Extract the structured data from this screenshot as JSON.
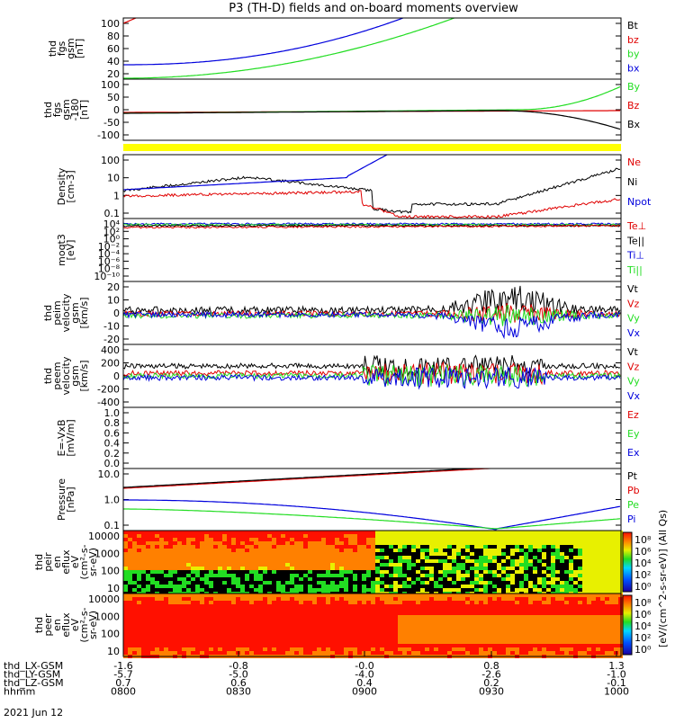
{
  "title": "P3 (TH-D) fields and on-board moments overview",
  "colors": {
    "black": "#000000",
    "red": "#e00000",
    "green": "#22dd22",
    "blue": "#0000dd",
    "yellow": "#ffff00"
  },
  "chart_data": [
    {
      "type": "line",
      "ylabel": [
        "thd",
        "fgs",
        "gsm",
        "[nT]"
      ],
      "yticks": [
        "100",
        "80",
        "60",
        "40",
        "20"
      ],
      "ylim": [
        20,
        100
      ],
      "legend": [
        {
          "name": "Bt",
          "color": "#000000"
        },
        {
          "name": "bz",
          "color": "#e00000"
        },
        {
          "name": "by",
          "color": "#22dd22"
        },
        {
          "name": "bx",
          "color": "#0000dd"
        }
      ]
    },
    {
      "type": "line",
      "ylabel": [
        "thd",
        "fgs",
        "gsm",
        "-180",
        "[nT]"
      ],
      "yticks": [
        "100",
        "50",
        "0",
        "-50",
        "-100"
      ],
      "ylim": [
        -130,
        100
      ],
      "legend": [
        {
          "name": "By",
          "color": "#22dd22"
        },
        {
          "name": "Bz",
          "color": "#e00000"
        },
        {
          "name": "Bx",
          "color": "#000000"
        }
      ]
    },
    {
      "type": "line",
      "ylabel": [
        "Density",
        "[cm-3]"
      ],
      "yticks": [
        "100",
        "10",
        "1",
        "0.1"
      ],
      "yscale": "log",
      "legend": [
        {
          "name": "Ne",
          "color": "#e00000"
        },
        {
          "name": "Ni",
          "color": "#000000"
        },
        {
          "name": "Npot",
          "color": "#0000dd"
        }
      ]
    },
    {
      "type": "line",
      "ylabel": [
        "moqt3",
        "[eV]"
      ],
      "yticks": [
        "10⁴",
        "10²",
        "10⁰",
        "10⁻²",
        "10⁻⁴",
        "10⁻⁶",
        "10⁻⁸",
        "10⁻¹⁰"
      ],
      "yscale": "log",
      "legend": [
        {
          "name": "Te⊥",
          "color": "#e00000"
        },
        {
          "name": "Te||",
          "color": "#000000"
        },
        {
          "name": "Ti⊥",
          "color": "#0000dd"
        },
        {
          "name": "Ti||",
          "color": "#22dd22"
        }
      ]
    },
    {
      "type": "line",
      "ylabel": [
        "thd",
        "peim",
        "velocity",
        "gsm",
        "[km/s]"
      ],
      "yticks": [
        "20",
        "10",
        "0",
        "-10",
        "-20"
      ],
      "ylim": [
        -20,
        20
      ],
      "legend": [
        {
          "name": "Vt",
          "color": "#000000"
        },
        {
          "name": "Vz",
          "color": "#e00000"
        },
        {
          "name": "Vy",
          "color": "#22dd22"
        },
        {
          "name": "Vx",
          "color": "#0000dd"
        }
      ]
    },
    {
      "type": "line",
      "ylabel": [
        "thd",
        "peem",
        "velocity",
        "gsm",
        "[km/s]"
      ],
      "yticks": [
        "400",
        "200",
        "0",
        "-200",
        "-400"
      ],
      "ylim": [
        -400,
        400
      ],
      "legend": [
        {
          "name": "Vt",
          "color": "#000000"
        },
        {
          "name": "Vz",
          "color": "#e00000"
        },
        {
          "name": "Vy",
          "color": "#22dd22"
        },
        {
          "name": "Vx",
          "color": "#0000dd"
        }
      ]
    },
    {
      "type": "line",
      "ylabel": [
        "E=-VxB",
        "[mV/m]"
      ],
      "yticks": [
        "1.0",
        "0.8",
        "0.6",
        "0.4",
        "0.2",
        "0.0"
      ],
      "ylim": [
        0,
        1
      ],
      "legend": [
        {
          "name": "Ez",
          "color": "#e00000"
        },
        {
          "name": "Ey",
          "color": "#22dd22"
        },
        {
          "name": "Ex",
          "color": "#0000dd"
        }
      ]
    },
    {
      "type": "line",
      "ylabel": [
        "Pressure",
        "[nPa]"
      ],
      "yticks": [
        "10.0",
        "1.0",
        "0.1"
      ],
      "yscale": "log",
      "legend": [
        {
          "name": "Pt",
          "color": "#000000"
        },
        {
          "name": "Pb",
          "color": "#e00000"
        },
        {
          "name": "Pe",
          "color": "#22dd22"
        },
        {
          "name": "Pi",
          "color": "#0000dd"
        }
      ]
    },
    {
      "type": "heatmap",
      "ylabel": [
        "thd",
        "peir",
        "en",
        "eflux",
        "eV",
        "(cm²-s-",
        "sr-eV)"
      ],
      "yticks": [
        "10000",
        "1000",
        "100",
        "10"
      ]
    },
    {
      "type": "heatmap",
      "ylabel": [
        "thd",
        "peer",
        "en",
        "eflux",
        "eV",
        "(cm²-s-",
        "sr-eV)"
      ],
      "yticks": [
        "10000",
        "1000",
        "100",
        "10"
      ]
    }
  ],
  "colorbar": {
    "ticks": [
      "10⁸",
      "10⁶",
      "10⁴",
      "10²",
      "10⁰"
    ],
    "label": "[eV/(cm^2-s-sr-eV)] (All Qs)"
  },
  "xaxis": {
    "rows": [
      {
        "label": "thd_LX-GSM",
        "values": [
          "-1.6",
          "-0.8",
          "-0.0",
          "0.8",
          "1.3"
        ]
      },
      {
        "label": "thd_LY-GSM",
        "values": [
          "-5.7",
          "-5.0",
          "-4.0",
          "-2.6",
          "-1.0"
        ]
      },
      {
        "label": "thd_LZ-GSM",
        "values": [
          "0.7",
          "0.6",
          "0.4",
          "0.2",
          "-0.1"
        ]
      },
      {
        "label": "hhmm",
        "values": [
          "0800",
          "0830",
          "0900",
          "0930",
          "1000"
        ]
      }
    ],
    "date": "2021 Jun 12"
  }
}
